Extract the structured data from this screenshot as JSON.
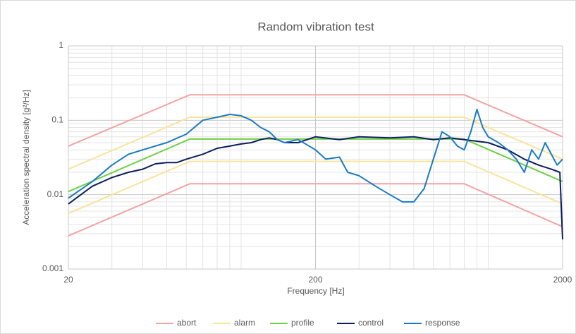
{
  "chart_data": {
    "type": "line",
    "title": "Random vibration test",
    "xlabel": "Frequency [Hz]",
    "ylabel": "Acceleration spectral density [g²/Hz]",
    "xscale": "log",
    "yscale": "log",
    "xlim": [
      20,
      2000
    ],
    "ylim": [
      0.001,
      1
    ],
    "xticks": [
      20,
      200,
      2000
    ],
    "yticks": [
      0.001,
      0.01,
      0.1,
      1
    ],
    "xminor": [
      30,
      40,
      50,
      60,
      70,
      80,
      90,
      100,
      300,
      400,
      500,
      600,
      700,
      800,
      900,
      1000
    ],
    "yminor": [
      0.002,
      0.003,
      0.004,
      0.005,
      0.006,
      0.007,
      0.008,
      0.009,
      0.02,
      0.03,
      0.04,
      0.05,
      0.06,
      0.07,
      0.08,
      0.09,
      0.2,
      0.3,
      0.4,
      0.5,
      0.6,
      0.7,
      0.8,
      0.9
    ],
    "grid": true,
    "legend": "bottom",
    "series": [
      {
        "name": "abort",
        "color": "#f4a3a3",
        "segments": [
          {
            "x": [
              20,
              62,
              800,
              2000
            ],
            "values": [
              0.045,
              0.22,
              0.22,
              0.06
            ]
          },
          {
            "x": [
              20,
              62,
              800,
              2000
            ],
            "values": [
              0.0028,
              0.014,
              0.014,
              0.0037
            ]
          }
        ]
      },
      {
        "name": "alarm",
        "color": "#fbe39a",
        "segments": [
          {
            "x": [
              20,
              62,
              800,
              2000
            ],
            "values": [
              0.022,
              0.11,
              0.11,
              0.03
            ]
          },
          {
            "x": [
              20,
              62,
              800,
              2000
            ],
            "values": [
              0.0056,
              0.028,
              0.028,
              0.0075
            ]
          }
        ]
      },
      {
        "name": "profile",
        "color": "#6fcf45",
        "segments": [
          {
            "x": [
              20,
              62,
              800,
              2000
            ],
            "values": [
              0.011,
              0.056,
              0.056,
              0.015
            ]
          }
        ]
      },
      {
        "name": "control",
        "color": "#0b1f5c",
        "segments": [
          {
            "x": [
              20,
              25,
              30,
              35,
              40,
              45,
              50,
              55,
              60,
              70,
              80,
              90,
              100,
              110,
              120,
              130,
              140,
              150,
              170,
              200,
              250,
              300,
              400,
              500,
              600,
              700,
              800,
              1000,
              1200,
              1400,
              1600,
              1800,
              1950,
              2000
            ],
            "values": [
              0.0075,
              0.013,
              0.017,
              0.02,
              0.022,
              0.026,
              0.027,
              0.027,
              0.03,
              0.035,
              0.042,
              0.045,
              0.048,
              0.05,
              0.055,
              0.058,
              0.055,
              0.05,
              0.05,
              0.06,
              0.055,
              0.06,
              0.058,
              0.06,
              0.055,
              0.058,
              0.055,
              0.05,
              0.04,
              0.03,
              0.025,
              0.022,
              0.02,
              0.0025
            ]
          }
        ]
      },
      {
        "name": "response",
        "color": "#1a7bc4",
        "segments": [
          {
            "x": [
              20,
              25,
              30,
              35,
              40,
              50,
              60,
              70,
              80,
              90,
              100,
              110,
              120,
              130,
              140,
              150,
              170,
              200,
              220,
              250,
              270,
              300,
              350,
              400,
              450,
              500,
              550,
              600,
              650,
              700,
              750,
              800,
              850,
              900,
              950,
              1000,
              1100,
              1200,
              1300,
              1400,
              1500,
              1600,
              1700,
              1800,
              1900,
              2000
            ],
            "values": [
              0.009,
              0.015,
              0.025,
              0.035,
              0.04,
              0.05,
              0.065,
              0.1,
              0.11,
              0.12,
              0.115,
              0.1,
              0.08,
              0.07,
              0.055,
              0.05,
              0.055,
              0.04,
              0.03,
              0.032,
              0.02,
              0.018,
              0.013,
              0.01,
              0.008,
              0.008,
              0.012,
              0.03,
              0.07,
              0.06,
              0.045,
              0.04,
              0.07,
              0.14,
              0.08,
              0.06,
              0.05,
              0.04,
              0.03,
              0.02,
              0.04,
              0.03,
              0.05,
              0.035,
              0.025,
              0.03
            ]
          }
        ]
      }
    ]
  }
}
